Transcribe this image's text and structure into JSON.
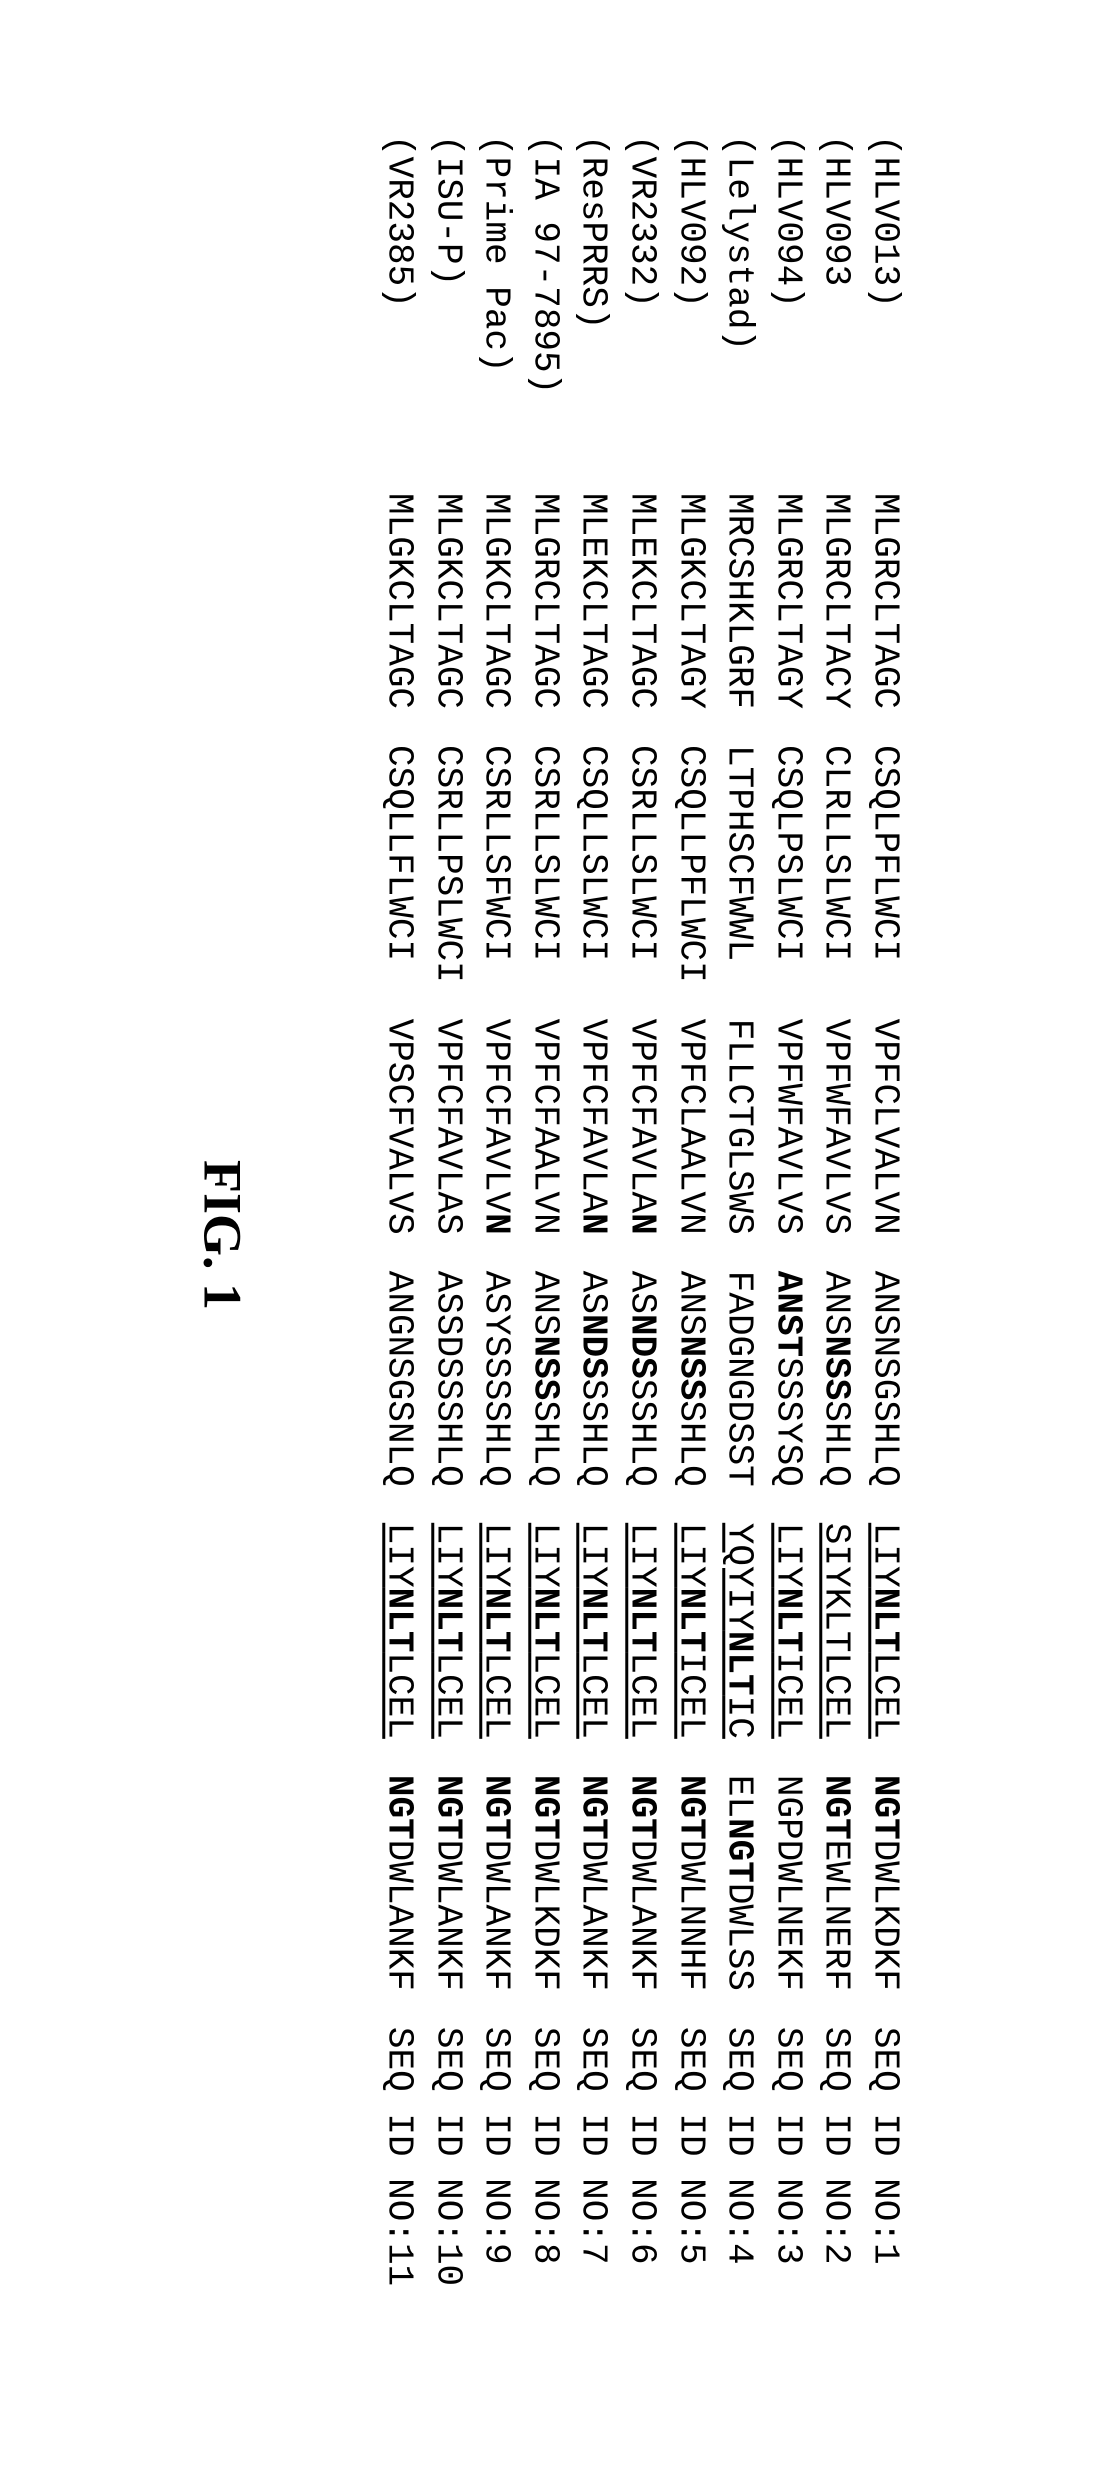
{
  "caption": "FIG. 1",
  "columns": [
    "label",
    "seg1",
    "seg2",
    "seg3",
    "seg4",
    "seg5",
    "seg6",
    "seqid"
  ],
  "rows": [
    {
      "label": "(HLV013)",
      "seg1": [
        {
          "t": "MLGRCLTAGC"
        }
      ],
      "seg2": [
        {
          "t": "CSQLPFLWCI"
        }
      ],
      "seg3": [
        {
          "t": "VPFCLVALVN"
        }
      ],
      "seg4": [
        {
          "t": "ANSNSGSHLQ"
        }
      ],
      "seg5": [
        {
          "t": "LIY",
          "u": true
        },
        {
          "t": "NLT",
          "b": true,
          "u": true
        },
        {
          "t": "LCEL",
          "u": true
        }
      ],
      "seg6": [
        {
          "t": "NGT",
          "b": true
        },
        {
          "t": "DWLKDKF"
        }
      ],
      "seqid": "SEQ ID NO:1"
    },
    {
      "label": "(HLV093",
      "seg1": [
        {
          "t": "MLGRCLTACY"
        }
      ],
      "seg2": [
        {
          "t": "CLRLLSLWCI"
        }
      ],
      "seg3": [
        {
          "t": "VPFWFAVLVS"
        }
      ],
      "seg4": [
        {
          "t": "ANS"
        },
        {
          "t": "NSS",
          "b": true
        },
        {
          "t": "SHLQ"
        }
      ],
      "seg5": [
        {
          "t": "SIYKLTLCEL",
          "u": true
        }
      ],
      "seg6": [
        {
          "t": "NGT",
          "b": true
        },
        {
          "t": "EWLNERF"
        }
      ],
      "seqid": "SEQ ID NO:2"
    },
    {
      "label": "(HLV094)",
      "seg1": [
        {
          "t": "MLGRCLTAGY"
        }
      ],
      "seg2": [
        {
          "t": "CSQLPSLWCI"
        }
      ],
      "seg3": [
        {
          "t": "VPFWFAVLVS"
        }
      ],
      "seg4": [
        {
          "t": "ANST",
          "b": true
        },
        {
          "t": "SSSYSQ"
        }
      ],
      "seg5": [
        {
          "t": "LIY",
          "u": true
        },
        {
          "t": "NLT",
          "b": true,
          "u": true
        },
        {
          "t": "ICEL",
          "u": true
        }
      ],
      "seg6": [
        {
          "t": "NGPDWLNEKF"
        }
      ],
      "seqid": "SEQ ID NO:3"
    },
    {
      "label": "(Lelystad)",
      "seg1": [
        {
          "t": "MRCSHKLGRF"
        }
      ],
      "seg2": [
        {
          "t": "LTPHSCFWWL"
        }
      ],
      "seg3": [
        {
          "t": "FLLCTGLSWS"
        }
      ],
      "seg4": [
        {
          "t": "FADGNGDSST"
        }
      ],
      "seg5": [
        {
          "t": "YQYIY",
          "u": true
        },
        {
          "t": "NLT",
          "b": true,
          "u": true
        },
        {
          "t": "IC",
          "u": true
        }
      ],
      "seg6": [
        {
          "t": "EL"
        },
        {
          "t": "NGT",
          "b": true
        },
        {
          "t": "DWLSS"
        }
      ],
      "seqid": "SEQ ID NO:4"
    },
    {
      "label": "(HLV092)",
      "seg1": [
        {
          "t": "MLGKCLTAGY"
        }
      ],
      "seg2": [
        {
          "t": "CSQLLPFLWCI"
        }
      ],
      "seg3": [
        {
          "t": "VPFCLAALVN"
        }
      ],
      "seg4": [
        {
          "t": "ANS"
        },
        {
          "t": "NSS",
          "b": true
        },
        {
          "t": "SHLQ"
        }
      ],
      "seg5": [
        {
          "t": "LIY",
          "u": true
        },
        {
          "t": "NLT",
          "b": true,
          "u": true
        },
        {
          "t": "ICEL",
          "u": true
        }
      ],
      "seg6": [
        {
          "t": "NGT",
          "b": true
        },
        {
          "t": "DWLNNHF"
        }
      ],
      "seqid": "SEQ ID NO:5"
    },
    {
      "label": "(VR2332)",
      "seg1": [
        {
          "t": "MLEKCLTAGC"
        }
      ],
      "seg2": [
        {
          "t": "CSRLLSLWCI"
        }
      ],
      "seg3": [
        {
          "t": "VPFCFAVLA"
        },
        {
          "t": "N",
          "b": true
        }
      ],
      "seg4": [
        {
          "t": "AS"
        },
        {
          "t": "NDS",
          "b": true
        },
        {
          "t": "SSHLQ"
        }
      ],
      "seg5": [
        {
          "t": "LIY",
          "u": true
        },
        {
          "t": "NLT",
          "b": true,
          "u": true
        },
        {
          "t": "LCEL",
          "u": true
        }
      ],
      "seg6": [
        {
          "t": "NGT",
          "b": true
        },
        {
          "t": "DWLANKF"
        }
      ],
      "seqid": "SEQ ID NO:6"
    },
    {
      "label": "(ResPRRS)",
      "seg1": [
        {
          "t": "MLEKCLTAGC"
        }
      ],
      "seg2": [
        {
          "t": "CSQLLSLWCI"
        }
      ],
      "seg3": [
        {
          "t": "VPFCFAVLA"
        },
        {
          "t": "N",
          "b": true
        }
      ],
      "seg4": [
        {
          "t": "AS"
        },
        {
          "t": "NDS",
          "b": true
        },
        {
          "t": "SSHLQ"
        }
      ],
      "seg5": [
        {
          "t": "LIY",
          "u": true
        },
        {
          "t": "NLT",
          "b": true,
          "u": true
        },
        {
          "t": "LCEL",
          "u": true
        }
      ],
      "seg6": [
        {
          "t": "NGT",
          "b": true
        },
        {
          "t": "DWLANKF"
        }
      ],
      "seqid": "SEQ ID NO:7"
    },
    {
      "label": "(IA 97-7895)",
      "seg1": [
        {
          "t": "MLGRCLTAGC"
        }
      ],
      "seg2": [
        {
          "t": "CSRLLSLWCI"
        }
      ],
      "seg3": [
        {
          "t": "VPFCFAALVN"
        }
      ],
      "seg4": [
        {
          "t": "ANS"
        },
        {
          "t": "NSS",
          "b": true
        },
        {
          "t": "SHLQ"
        }
      ],
      "seg5": [
        {
          "t": "LIY",
          "u": true
        },
        {
          "t": "NLT",
          "b": true,
          "u": true
        },
        {
          "t": "LCEL",
          "u": true
        }
      ],
      "seg6": [
        {
          "t": "NGT",
          "b": true
        },
        {
          "t": "DWLKDKF"
        }
      ],
      "seqid": "SEQ ID NO:8"
    },
    {
      "label": "(Prime Pac)",
      "seg1": [
        {
          "t": "MLGKCLTAGC"
        }
      ],
      "seg2": [
        {
          "t": "CSRLLSFWCI"
        }
      ],
      "seg3": [
        {
          "t": "VPFCFAVLV"
        },
        {
          "t": "N",
          "b": true
        }
      ],
      "seg4": [
        {
          "t": "ASYSSSSHLQ"
        }
      ],
      "seg5": [
        {
          "t": "LIY",
          "u": true
        },
        {
          "t": "NLT",
          "b": true,
          "u": true
        },
        {
          "t": "LCEL",
          "u": true
        }
      ],
      "seg6": [
        {
          "t": "NGT",
          "b": true
        },
        {
          "t": "DWLANKF"
        }
      ],
      "seqid": "SEQ ID NO:9"
    },
    {
      "label": "(ISU-P)",
      "seg1": [
        {
          "t": "MLGKCLTAGC"
        }
      ],
      "seg2": [
        {
          "t": "CSRLLPSLWCI"
        }
      ],
      "seg3": [
        {
          "t": "VPFCFAVLAS"
        }
      ],
      "seg4": [
        {
          "t": "ASSDSSSHLQ"
        }
      ],
      "seg5": [
        {
          "t": "LIY",
          "u": true
        },
        {
          "t": "NLT",
          "b": true,
          "u": true
        },
        {
          "t": "LCEL",
          "u": true
        }
      ],
      "seg6": [
        {
          "t": "NGT",
          "b": true
        },
        {
          "t": "DWLANKF"
        }
      ],
      "seqid": "SEQ ID NO:10"
    },
    {
      "label": "(VR2385)",
      "seg1": [
        {
          "t": "MLGKCLTAGC"
        }
      ],
      "seg2": [
        {
          "t": "CSQLLFLWCI"
        }
      ],
      "seg3": [
        {
          "t": "VPSCFVALVS"
        }
      ],
      "seg4": [
        {
          "t": "ANGNSGSNLQ"
        }
      ],
      "seg5": [
        {
          "t": "LIY",
          "u": true
        },
        {
          "t": "NLT",
          "b": true,
          "u": true
        },
        {
          "t": "LCEL",
          "u": true
        }
      ],
      "seg6": [
        {
          "t": "NGT",
          "b": true
        },
        {
          "t": "DWLANKF"
        }
      ],
      "seqid": "SEQ ID NO:11"
    }
  ]
}
